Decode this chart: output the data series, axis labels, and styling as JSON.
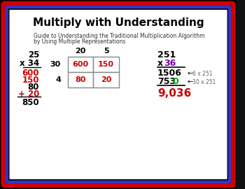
{
  "title": "Multiply with Understanding",
  "subtitle_line1": "Guide to Understanding the Traditional Multiplication Algorithm",
  "subtitle_line2": "by Using Multiple Representations",
  "bg_color": "#ffffff",
  "outer_border_color": "#000000",
  "red_border_color": "#cc0000",
  "blue_border_color": "#3333cc",
  "title_color": "#000000",
  "subtitle_color": "#333333",
  "left_algo": {
    "line1": "25",
    "line2": "x 34",
    "line3_red": "600",
    "line4_red": "150",
    "line5_black": "80",
    "line6_red": "+ 20",
    "line7_black": "850"
  },
  "area_model": {
    "col_labels": [
      "20",
      "5"
    ],
    "row_labels": [
      "30",
      "4"
    ],
    "cells": [
      [
        "600",
        "150"
      ],
      [
        "80",
        "20"
      ]
    ]
  },
  "right_algo": {
    "line1": "251",
    "line2_x": "x ",
    "line2_num": "36",
    "line3": "1506",
    "line3_arrow": "←",
    "line3_note": "6 x 251",
    "line4": "7530",
    "line4_zero_color": "#00aa00",
    "line4_arrow": "←",
    "line4_note": "30 x 251",
    "line5": "9,036"
  },
  "red": "#cc0000",
  "purple": "#7700aa",
  "green": "#00aa00",
  "black": "#000000",
  "gray_note": "#666666"
}
